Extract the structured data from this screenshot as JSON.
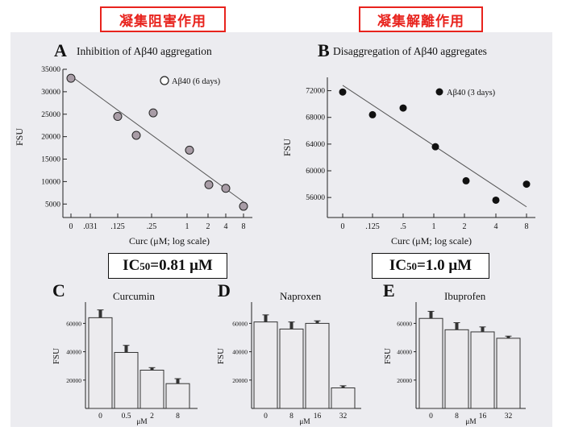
{
  "labels": {
    "left_heading": "凝集阻害作用",
    "right_heading": "凝集解離作用",
    "ic_left_prefix": "IC",
    "ic_left_sub": "50",
    "ic_left_value": "=0.81 μM",
    "ic_right_prefix": "IC",
    "ic_right_sub": "50",
    "ic_right_value": "=1.0 μM"
  },
  "colors": {
    "heading_red": "#e8231d",
    "open_marker": "#a89ca6",
    "filled_marker": "#111111",
    "bar_fill": "#ecebee",
    "panel_bg": "#ececf0"
  },
  "chart_data": [
    {
      "id": "A",
      "type": "scatter",
      "panel_letter": "A",
      "title": "Inhibition of Aβ40 aggregation",
      "ylabel": "FSU",
      "xlabel": "Curc (μM; log scale)",
      "legend": "Aβ40 (6 days)",
      "legend_position": "top-right",
      "marker": "open-circle",
      "x_ticks": [
        "0",
        ".031",
        ".125",
        ".25",
        "1",
        "2",
        "4",
        "8"
      ],
      "y_ticks": [
        5000,
        10000,
        15000,
        20000,
        25000,
        30000,
        35000
      ],
      "ylim": [
        2000,
        35000
      ],
      "x": [
        "0",
        ".125",
        ".18",
        ".35",
        "1.1",
        "2.3",
        "4.5",
        "8"
      ],
      "y": [
        33000,
        24500,
        20300,
        25300,
        17000,
        9300,
        8500,
        4500
      ],
      "trendline": [
        [
          0,
          33500
        ],
        [
          8,
          5500
        ]
      ]
    },
    {
      "id": "B",
      "type": "scatter",
      "panel_letter": "B",
      "title": "Disaggregation of Aβ40 aggregates",
      "ylabel": "FSU",
      "xlabel": "Curc (μM; log scale)",
      "legend": "Aβ40 (3 days)",
      "legend_position": "top-right",
      "marker": "filled-circle",
      "x_ticks": [
        "0",
        ".125",
        ".5",
        "1",
        "2",
        "4",
        "8"
      ],
      "y_ticks": [
        56000,
        60000,
        64000,
        68000,
        72000
      ],
      "ylim": [
        53000,
        74000
      ],
      "x": [
        "0",
        ".125",
        ".5",
        "1.1",
        "2.2",
        "4",
        "8"
      ],
      "y": [
        71800,
        68400,
        69400,
        63600,
        58500,
        55600,
        58000
      ],
      "trendline": [
        [
          0,
          72800
        ],
        [
          8,
          54600
        ]
      ]
    },
    {
      "id": "C",
      "type": "bar",
      "panel_letter": "C",
      "title": "Curcumin",
      "ylabel": "FSU",
      "xlabel": "μM",
      "categories": [
        "0",
        "0.5",
        "2",
        "8"
      ],
      "values": [
        64000,
        39500,
        27000,
        17500
      ],
      "errors": [
        5500,
        5000,
        1800,
        3500
      ],
      "y_ticks": [
        20000,
        40000,
        60000
      ],
      "ylim": [
        0,
        75000
      ]
    },
    {
      "id": "D",
      "type": "bar",
      "panel_letter": "D",
      "title": "Naproxen",
      "ylabel": "FSU",
      "xlabel": "μM",
      "categories": [
        "0",
        "8",
        "16",
        "32"
      ],
      "values": [
        61000,
        56000,
        60000,
        14500
      ],
      "errors": [
        5000,
        5000,
        1800,
        1500
      ],
      "y_ticks": [
        20000,
        40000,
        60000
      ],
      "ylim": [
        0,
        75000
      ]
    },
    {
      "id": "E",
      "type": "bar",
      "panel_letter": "E",
      "title": "Ibuprofen",
      "ylabel": "FSU",
      "xlabel": "μM",
      "categories": [
        "0",
        "8",
        "16",
        "32"
      ],
      "values": [
        63500,
        55500,
        54000,
        49500
      ],
      "errors": [
        5000,
        5000,
        3500,
        1500
      ],
      "y_ticks": [
        20000,
        40000,
        60000
      ],
      "ylim": [
        0,
        75000
      ]
    }
  ]
}
